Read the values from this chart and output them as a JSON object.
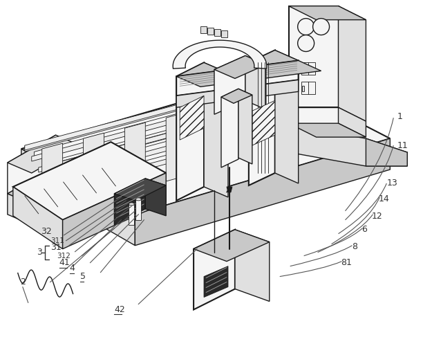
{
  "bg": "#ffffff",
  "lc": "#1a1a1a",
  "lc_gray": "#888888",
  "lw": 1.0,
  "lw_thick": 1.5,
  "lw_thin": 0.6,
  "fig_w": 6.25,
  "fig_h": 5.0,
  "dpi": 100,
  "label_fs": 9,
  "label_fs_small": 7.5,
  "label_color": "#333333"
}
